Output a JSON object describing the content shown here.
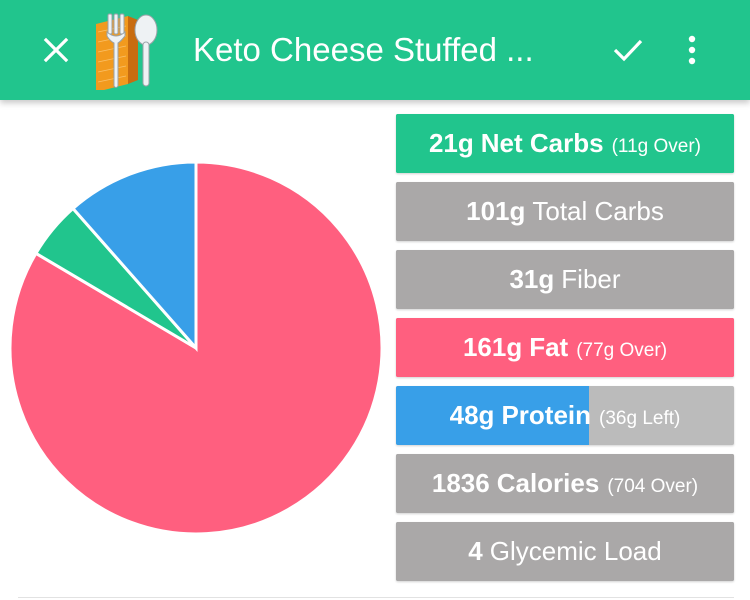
{
  "appbar": {
    "title": "Keto Cheese Stuffed ...",
    "close_icon": "close-icon",
    "logo_icon": "fork-spoon-logo",
    "confirm_icon": "check-icon",
    "more_icon": "more-vert-icon",
    "color": "#21c58d"
  },
  "chart_data": {
    "type": "pie",
    "series_note": "",
    "slices": [
      {
        "label": "Fat",
        "value": 83.5,
        "color": "#ff5f7f"
      },
      {
        "label": "Net Carbs",
        "value": 5.0,
        "color": "#21c58d"
      },
      {
        "label": "Protein",
        "value": 11.5,
        "color": "#389fe8"
      }
    ]
  },
  "stats": [
    {
      "value": "21g",
      "label": "Net Carbs",
      "label_bold": true,
      "note": "(11g Over)",
      "color": "#21c58d",
      "fill_fraction": 1.0
    },
    {
      "value": "101g",
      "label": "Total Carbs",
      "label_bold": false,
      "note": "",
      "color": "#aaa8a8",
      "fill_fraction": 1.0
    },
    {
      "value": "31g",
      "label": "Fiber",
      "label_bold": false,
      "note": "",
      "color": "#aaa8a8",
      "fill_fraction": 1.0
    },
    {
      "value": "161g",
      "label": "Fat",
      "label_bold": true,
      "note": "(77g Over)",
      "color": "#ff5f7f",
      "fill_fraction": 1.0
    },
    {
      "value": "48g",
      "label": "Protein",
      "label_bold": true,
      "note": "(36g Left)",
      "color": "#389fe8",
      "track_color": "#bbbbbb",
      "fill_fraction": 0.57
    },
    {
      "value": "1836",
      "label": "Calories",
      "label_bold": true,
      "note": "(704 Over)",
      "color": "#aaa8a8",
      "fill_fraction": 1.0
    },
    {
      "value": "4",
      "label": "Glycemic Load",
      "label_bold": false,
      "note": "",
      "color": "#aaa8a8",
      "fill_fraction": 1.0
    }
  ]
}
